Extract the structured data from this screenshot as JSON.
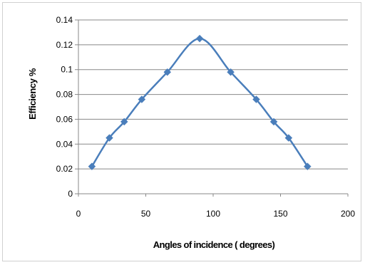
{
  "chart_data": {
    "type": "scatter",
    "title": "",
    "xlabel": "Angles of incidence ( degrees)",
    "ylabel": "Efficiency  %",
    "xlim": [
      0,
      200
    ],
    "ylim": [
      0,
      0.14
    ],
    "x_ticks": [
      0,
      50,
      100,
      150,
      200
    ],
    "y_ticks": [
      0,
      0.02,
      0.04,
      0.06,
      0.08,
      0.1,
      0.12,
      0.14
    ],
    "x_tick_labels": [
      "0",
      "50",
      "100",
      "150",
      "200"
    ],
    "y_tick_labels": [
      "0",
      "0.02",
      "0.04",
      "0.06",
      "0.08",
      "0.1",
      "0.12",
      "0.14"
    ],
    "grid": "horizontal",
    "legend": "none",
    "line": "smooth",
    "color": "#4a7ebb",
    "series": [
      {
        "x": [
          10,
          23,
          34,
          47,
          66,
          90,
          113,
          132,
          145,
          156,
          170
        ],
        "y": [
          0.022,
          0.045,
          0.058,
          0.076,
          0.098,
          0.125,
          0.098,
          0.076,
          0.058,
          0.045,
          0.022
        ]
      }
    ]
  }
}
